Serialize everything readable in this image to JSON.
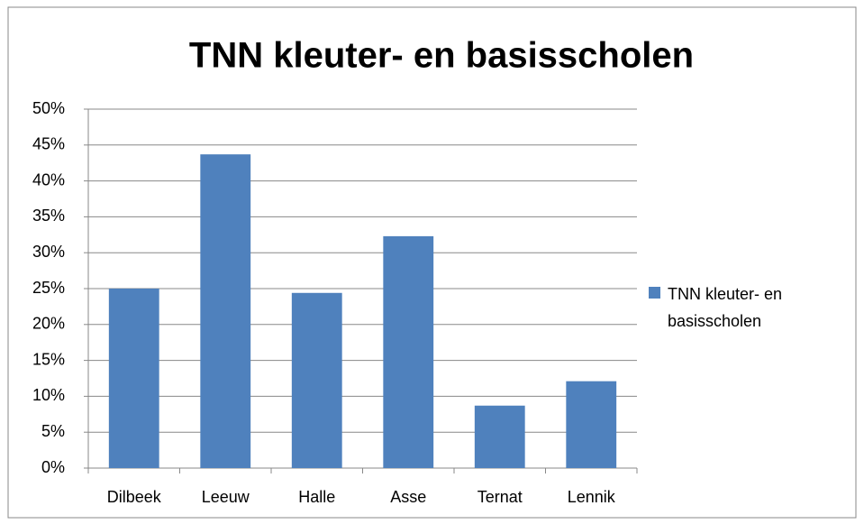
{
  "chart_data": {
    "type": "bar",
    "title": "TNN kleuter- en basisscholen",
    "categories": [
      "Dilbeek",
      "Leeuw",
      "Halle",
      "Asse",
      "Ternat",
      "Lennik"
    ],
    "series": [
      {
        "name": "TNN kleuter- en basisscholen",
        "color": "#4f81bd",
        "values": [
          25.0,
          43.7,
          24.4,
          32.3,
          8.7,
          12.1
        ]
      }
    ],
    "ylim": [
      0,
      50
    ],
    "yticks": [
      {
        "value": 0,
        "label": "0%"
      },
      {
        "value": 5,
        "label": "5%"
      },
      {
        "value": 10,
        "label": "10%"
      },
      {
        "value": 15,
        "label": "15%"
      },
      {
        "value": 20,
        "label": "20%"
      },
      {
        "value": 25,
        "label": "25%"
      },
      {
        "value": 30,
        "label": "30%"
      },
      {
        "value": 35,
        "label": "35%"
      },
      {
        "value": 40,
        "label": "40%"
      },
      {
        "value": 45,
        "label": "45%"
      },
      {
        "value": 50,
        "label": "50%"
      }
    ],
    "grid": true,
    "legend": "right"
  }
}
